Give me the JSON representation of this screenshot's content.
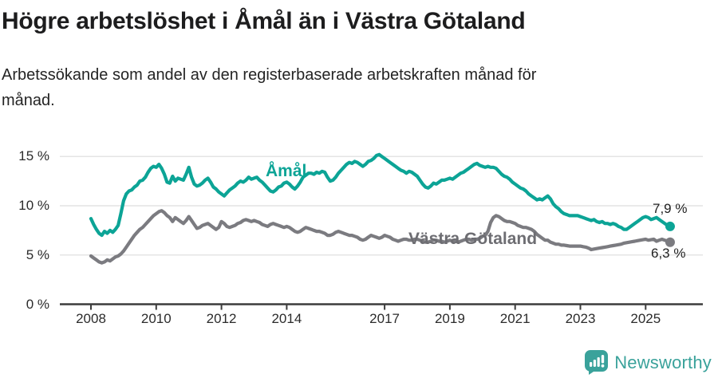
{
  "header": {
    "title": "Högre arbetslöshet i Åmål än i Västra Götaland",
    "subtitle_lines": [
      "Arbetssökande som andel av den registerbaserade arbetskraften månad för",
      "månad."
    ]
  },
  "chart_data": {
    "type": "line",
    "title": "Högre arbetslöshet i Åmål än i Västra Götaland",
    "subtitle": "Arbetssökande som andel av den registerbaserade arbetskraften månad för månad.",
    "x_start": "2008-01",
    "x_end": "2025-10",
    "x_frequency": "monthly",
    "ylim": [
      0,
      15
    ],
    "grid": "horizontal",
    "legend_position": "inline-labels",
    "yticks": [
      {
        "value": 0,
        "label": "0 %"
      },
      {
        "value": 5,
        "label": "5 %"
      },
      {
        "value": 10,
        "label": "10 %"
      },
      {
        "value": 15,
        "label": "15 %"
      }
    ],
    "xticks": [
      {
        "year": 2008,
        "label": "2008"
      },
      {
        "year": 2010,
        "label": "2010"
      },
      {
        "year": 2012,
        "label": "2012"
      },
      {
        "year": 2014,
        "label": "2014"
      },
      {
        "year": 2017,
        "label": "2017"
      },
      {
        "year": 2019,
        "label": "2019"
      },
      {
        "year": 2021,
        "label": "2021"
      },
      {
        "year": 2023,
        "label": "2023"
      },
      {
        "year": 2025,
        "label": "2025"
      }
    ],
    "series": [
      {
        "name": "Åmål",
        "color": "#0ca496",
        "end_value": 7.9,
        "end_label": "7,9 %",
        "values": [
          8.7,
          8.1,
          7.6,
          7.2,
          7.0,
          7.4,
          7.2,
          7.5,
          7.3,
          7.6,
          8.0,
          9.2,
          10.5,
          11.2,
          11.5,
          11.6,
          11.9,
          12.1,
          12.5,
          12.6,
          12.9,
          13.4,
          13.8,
          14.0,
          13.9,
          14.2,
          13.8,
          13.2,
          12.4,
          12.3,
          13.0,
          12.5,
          12.8,
          12.7,
          12.6,
          13.2,
          13.9,
          12.9,
          12.2,
          12.0,
          12.1,
          12.3,
          12.6,
          12.8,
          12.4,
          11.9,
          11.7,
          11.4,
          11.2,
          11.0,
          11.3,
          11.6,
          11.8,
          12.0,
          12.3,
          12.5,
          12.4,
          12.6,
          12.9,
          12.7,
          12.8,
          12.9,
          12.6,
          12.4,
          12.1,
          11.8,
          11.5,
          11.4,
          11.6,
          11.9,
          12.0,
          12.3,
          12.4,
          12.2,
          11.9,
          11.7,
          12.0,
          12.4,
          12.9,
          13.1,
          13.3,
          13.3,
          13.2,
          13.4,
          13.3,
          13.5,
          13.4,
          12.9,
          12.5,
          12.6,
          12.9,
          13.3,
          13.6,
          13.9,
          14.2,
          14.4,
          14.3,
          14.5,
          14.4,
          14.2,
          14.0,
          14.2,
          14.5,
          14.6,
          14.8,
          15.1,
          15.2,
          15.0,
          14.8,
          14.6,
          14.4,
          14.2,
          14.0,
          13.8,
          13.6,
          13.5,
          13.3,
          13.5,
          13.4,
          13.2,
          13.0,
          12.6,
          12.2,
          11.9,
          11.8,
          12.0,
          12.3,
          12.2,
          12.4,
          12.6,
          12.6,
          12.7,
          12.8,
          12.7,
          12.9,
          13.1,
          13.3,
          13.4,
          13.6,
          13.8,
          14.0,
          14.2,
          14.3,
          14.1,
          14.0,
          13.9,
          14.0,
          13.9,
          13.9,
          13.8,
          13.5,
          13.2,
          13.0,
          12.9,
          12.7,
          12.4,
          12.2,
          12.0,
          11.8,
          11.7,
          11.5,
          11.2,
          11.0,
          10.8,
          10.6,
          10.7,
          10.6,
          10.8,
          11.0,
          10.7,
          10.2,
          9.9,
          9.7,
          9.4,
          9.2,
          9.1,
          9.0,
          9.0,
          9.0,
          9.0,
          8.9,
          8.8,
          8.7,
          8.6,
          8.5,
          8.6,
          8.4,
          8.3,
          8.4,
          8.2,
          8.2,
          8.1,
          8.2,
          8.1,
          7.9,
          7.8,
          7.6,
          7.6,
          7.8,
          8.0,
          8.2,
          8.4,
          8.6,
          8.8,
          8.9,
          8.8,
          8.6,
          8.7,
          8.8,
          8.6,
          8.4,
          8.2,
          8.0,
          7.9
        ]
      },
      {
        "name": "Västra Götaland",
        "color": "#7b7b80",
        "end_value": 6.3,
        "end_label": "6,3 %",
        "values": [
          4.9,
          4.7,
          4.5,
          4.3,
          4.2,
          4.3,
          4.5,
          4.4,
          4.6,
          4.8,
          4.9,
          5.1,
          5.4,
          5.8,
          6.2,
          6.6,
          7.0,
          7.3,
          7.6,
          7.8,
          8.1,
          8.4,
          8.7,
          9.0,
          9.2,
          9.4,
          9.5,
          9.3,
          9.0,
          8.8,
          8.4,
          8.8,
          8.6,
          8.4,
          8.2,
          8.5,
          8.9,
          8.5,
          8.1,
          7.7,
          7.8,
          8.0,
          8.1,
          8.2,
          8.0,
          7.8,
          7.6,
          7.8,
          8.4,
          8.2,
          7.9,
          7.8,
          7.9,
          8.0,
          8.2,
          8.3,
          8.5,
          8.6,
          8.5,
          8.4,
          8.5,
          8.4,
          8.3,
          8.1,
          8.0,
          7.9,
          8.1,
          8.2,
          8.1,
          8.0,
          7.9,
          7.8,
          7.9,
          7.8,
          7.6,
          7.4,
          7.3,
          7.4,
          7.6,
          7.8,
          7.7,
          7.6,
          7.5,
          7.4,
          7.4,
          7.3,
          7.2,
          7.0,
          7.0,
          7.1,
          7.3,
          7.4,
          7.3,
          7.2,
          7.1,
          7.0,
          7.0,
          6.9,
          6.8,
          6.6,
          6.5,
          6.6,
          6.8,
          7.0,
          6.9,
          6.8,
          6.7,
          6.8,
          7.0,
          6.9,
          6.8,
          6.6,
          6.5,
          6.4,
          6.5,
          6.6,
          6.6,
          6.5,
          6.5,
          6.6,
          6.6,
          6.5,
          6.4,
          6.3,
          6.3,
          6.4,
          6.5,
          6.5,
          6.4,
          6.4,
          6.3,
          6.4,
          6.5,
          6.4,
          6.4,
          6.3,
          6.4,
          6.5,
          6.6,
          6.6,
          6.5,
          6.6,
          6.6,
          6.7,
          6.9,
          7.0,
          7.4,
          8.3,
          8.8,
          9.0,
          8.9,
          8.7,
          8.5,
          8.4,
          8.4,
          8.3,
          8.2,
          8.0,
          7.9,
          7.8,
          7.8,
          7.7,
          7.6,
          7.4,
          7.1,
          6.9,
          6.7,
          6.5,
          6.5,
          6.3,
          6.2,
          6.1,
          6.1,
          6.0,
          6.0,
          5.95,
          5.9,
          5.9,
          5.9,
          5.9,
          5.9,
          5.85,
          5.8,
          5.7,
          5.55,
          5.6,
          5.65,
          5.7,
          5.75,
          5.8,
          5.85,
          5.9,
          5.95,
          6.0,
          6.05,
          6.1,
          6.2,
          6.25,
          6.3,
          6.35,
          6.4,
          6.45,
          6.5,
          6.55,
          6.6,
          6.5,
          6.55,
          6.6,
          6.4,
          6.5,
          6.6,
          6.5,
          6.4,
          6.3
        ]
      }
    ]
  },
  "colors": {
    "accent_teal": "#0ca496",
    "line_gray": "#7b7b80",
    "grid": "#e4e4e4",
    "axis": "#3c3c3c",
    "text": "#1d1d1e",
    "brand": "#3aa29b"
  },
  "footer": {
    "brand": "Newsworthy",
    "logo_icon": "bar-chart-pin-icon"
  }
}
